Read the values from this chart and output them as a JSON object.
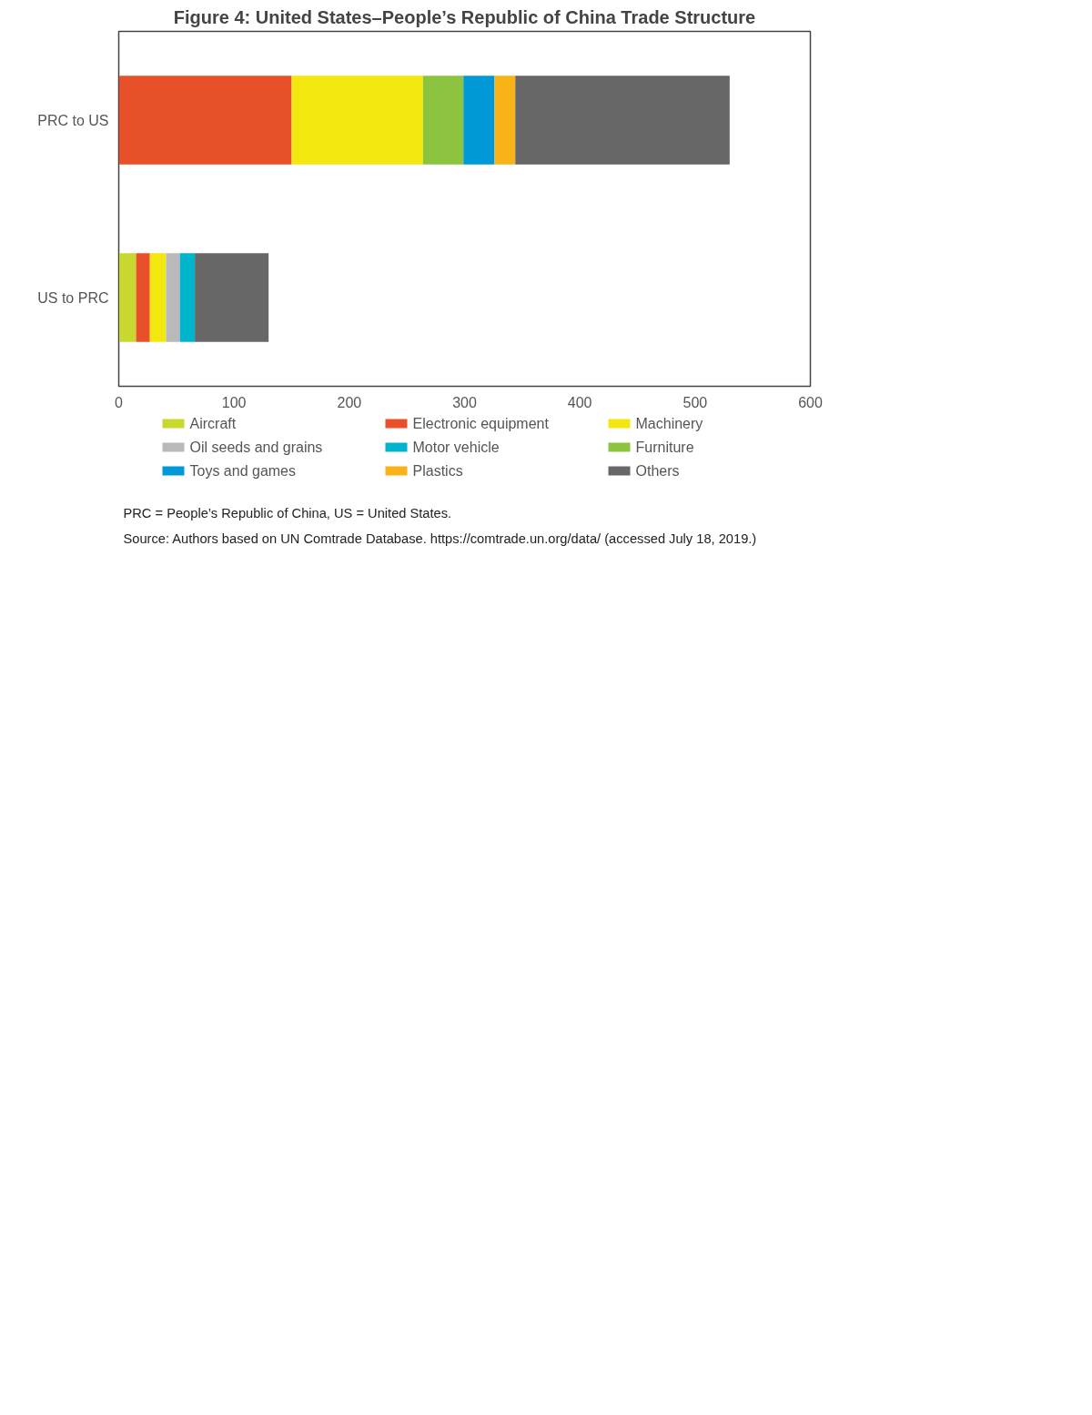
{
  "chart_data": {
    "type": "bar",
    "orientation": "horizontal",
    "stacked": true,
    "title": "Figure 4: United States–People’s Republic of China Trade Structure",
    "categories": [
      "PRC to US",
      "US to PRC"
    ],
    "series": [
      {
        "name": "Aircraft",
        "color": "#c8d82e",
        "values": [
          null,
          15
        ]
      },
      {
        "name": "Electronic equipment",
        "color": "#e8502a",
        "values": [
          150,
          12
        ]
      },
      {
        "name": "Machinery",
        "color": "#f2e70f",
        "values": [
          114,
          14
        ]
      },
      {
        "name": "Oil seeds and grains",
        "color": "#b9b9bc",
        "values": [
          null,
          12
        ]
      },
      {
        "name": "Motor vehicle",
        "color": "#00b4cc",
        "values": [
          null,
          13
        ]
      },
      {
        "name": "Furniture",
        "color": "#8cc43f",
        "values": [
          35,
          null
        ]
      },
      {
        "name": "Toys and games",
        "color": "#0099d8",
        "values": [
          27,
          null
        ]
      },
      {
        "name": "Plastics",
        "color": "#fab219",
        "values": [
          18,
          null
        ]
      },
      {
        "name": "Others",
        "color": "#676767",
        "values": [
          186,
          64
        ]
      }
    ],
    "xlim": [
      0,
      600
    ],
    "xticks": [
      0,
      100,
      200,
      300,
      400,
      500,
      600
    ],
    "grid": false,
    "legend": "bottom",
    "annotations": [
      "PRC = People’s Republic of China, US = United States.",
      "Source: Authors based on UN Comtrade Database. https://comtrade.un.org/data/ (accessed July 18, 2019.)"
    ]
  }
}
